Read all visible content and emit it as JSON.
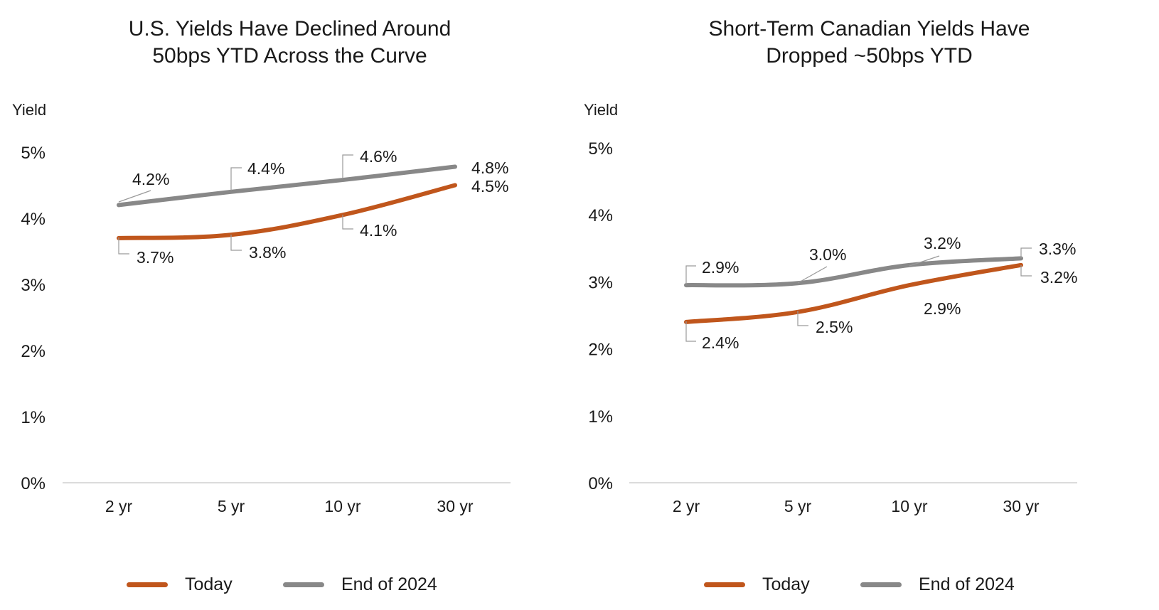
{
  "colors": {
    "today": "#c0561c",
    "end2024": "#888888",
    "axis": "#cfcfcf",
    "text": "#1a1a1a"
  },
  "chart_data": [
    {
      "type": "line",
      "title_lines": [
        "U.S. Yields Have Declined Around",
        "50bps YTD Across the Curve"
      ],
      "ylabel": "Yield",
      "categories": [
        "2 yr",
        "5 yr",
        "10 yr",
        "30 yr"
      ],
      "yticks": [
        "0%",
        "1%",
        "2%",
        "3%",
        "4%",
        "5%"
      ],
      "ylim": [
        0,
        5
      ],
      "series": [
        {
          "name": "Today",
          "color": "#c0561c",
          "values": [
            3.7,
            3.75,
            4.05,
            4.5
          ],
          "labels": [
            "3.7%",
            "3.8%",
            "4.1%",
            "4.5%"
          ]
        },
        {
          "name": "End of 2024",
          "color": "#888888",
          "values": [
            4.2,
            4.4,
            4.58,
            4.78
          ],
          "labels": [
            "4.2%",
            "4.4%",
            "4.6%",
            "4.8%"
          ]
        }
      ],
      "legend": [
        "Today",
        "End of 2024"
      ]
    },
    {
      "type": "line",
      "title_lines": [
        "Short-Term Canadian Yields Have",
        "Dropped ~50bps YTD"
      ],
      "ylabel": "Yield",
      "categories": [
        "2 yr",
        "5 yr",
        "10 yr",
        "30 yr"
      ],
      "yticks": [
        "0%",
        "1%",
        "2%",
        "3%",
        "4%",
        "5%"
      ],
      "ylim": [
        0,
        5
      ],
      "series": [
        {
          "name": "Today",
          "color": "#c0561c",
          "values": [
            2.4,
            2.55,
            2.95,
            3.25
          ],
          "labels": [
            "2.4%",
            "2.5%",
            "2.9%",
            "3.2%"
          ]
        },
        {
          "name": "End of 2024",
          "color": "#888888",
          "values": [
            2.95,
            2.98,
            3.25,
            3.35
          ],
          "labels": [
            "2.9%",
            "3.0%",
            "3.2%",
            "3.3%"
          ]
        }
      ],
      "legend": [
        "Today",
        "End of 2024"
      ]
    }
  ]
}
